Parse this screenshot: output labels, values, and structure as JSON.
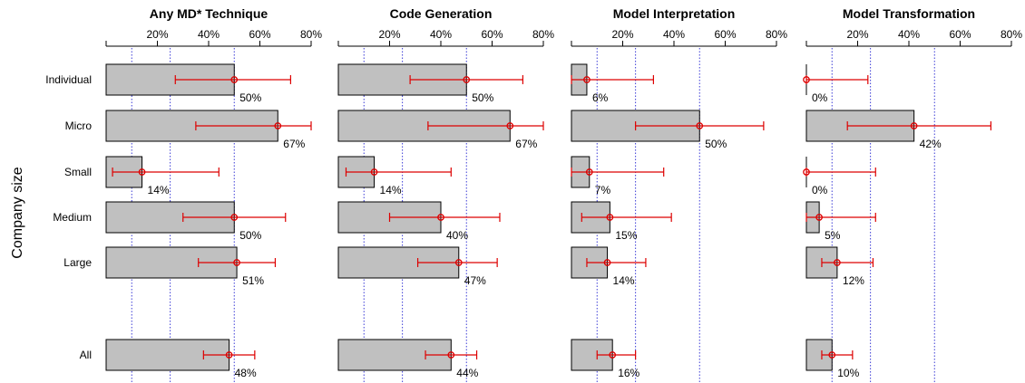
{
  "chart_data": {
    "type": "bar",
    "orientation": "horizontal",
    "ylabel": "Company size",
    "categories": [
      "Individual",
      "Micro",
      "Small",
      "Medium",
      "Large",
      "All"
    ],
    "xlim": [
      0,
      80
    ],
    "x_ticks": [
      20,
      40,
      60,
      80
    ],
    "x_tick_labels": [
      "20%",
      "40%",
      "60%",
      "80%"
    ],
    "reference_lines": [
      10,
      25,
      50
    ],
    "grid": false,
    "colors": {
      "bar": "#c0c0c0",
      "bar_stroke": "#000000",
      "error": "#dd0000",
      "reference_line": "#3b3bd6"
    },
    "panels": [
      {
        "title": "Any MD* Technique",
        "values": [
          50,
          67,
          14,
          50,
          51,
          48
        ],
        "labels": [
          "50%",
          "67%",
          "14%",
          "50%",
          "51%",
          "48%"
        ],
        "ci_low": [
          27,
          35,
          2.5,
          30,
          36,
          38
        ],
        "ci_high": [
          72,
          80,
          44,
          70,
          66,
          58
        ]
      },
      {
        "title": "Code Generation",
        "values": [
          50,
          67,
          14,
          40,
          47,
          44
        ],
        "labels": [
          "50%",
          "67%",
          "14%",
          "40%",
          "47%",
          "44%"
        ],
        "ci_low": [
          28,
          35,
          3,
          20,
          31,
          34
        ],
        "ci_high": [
          72,
          80,
          44,
          63,
          62,
          54
        ]
      },
      {
        "title": "Model Interpretation",
        "values": [
          6,
          50,
          7,
          15,
          14,
          16
        ],
        "labels": [
          "6%",
          "50%",
          "7%",
          "15%",
          "14%",
          "16%"
        ],
        "ci_low": [
          0,
          25,
          0,
          4,
          6,
          10
        ],
        "ci_high": [
          32,
          75,
          36,
          39,
          29,
          25
        ]
      },
      {
        "title": "Model Transformation",
        "values": [
          0,
          42,
          0,
          5,
          12,
          10
        ],
        "labels": [
          "0%",
          "42%",
          "0%",
          "5%",
          "12%",
          "10%"
        ],
        "ci_low": [
          0,
          16,
          0,
          0,
          6,
          6
        ],
        "ci_high": [
          24,
          72,
          27,
          27,
          26,
          18
        ]
      }
    ]
  }
}
